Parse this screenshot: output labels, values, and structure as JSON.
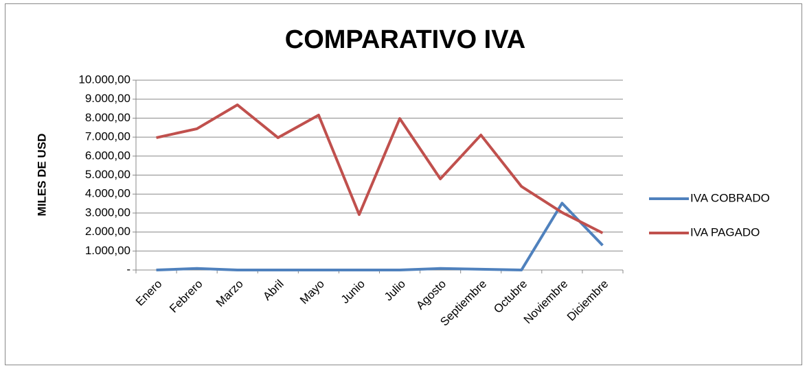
{
  "chart_data": {
    "type": "line",
    "title": "COMPARATIVO IVA",
    "y_label": "MILES DE USD",
    "categories": [
      "Enero",
      "Febrero",
      "Marzo",
      "Abril",
      "Mayo",
      "Junio",
      "Julio",
      "Agosto",
      "Septiembre",
      "Octubre",
      "Noviembre",
      "Diciembre"
    ],
    "series": [
      {
        "name": "IVA COBRADO",
        "color": "#4f81bd",
        "values": [
          0,
          80,
          0,
          0,
          0,
          0,
          0,
          80,
          40,
          0,
          3520,
          1300
        ]
      },
      {
        "name": "IVA PAGADO",
        "color": "#c0504d",
        "values": [
          6970,
          7440,
          8700,
          6970,
          8160,
          2920,
          7980,
          4800,
          7110,
          4400,
          3030,
          1950
        ]
      }
    ],
    "ylim": [
      0,
      10000
    ],
    "yticks": [
      {
        "value": 0,
        "label": "-"
      },
      {
        "value": 1000,
        "label": "1.000,00"
      },
      {
        "value": 2000,
        "label": "2.000,00"
      },
      {
        "value": 3000,
        "label": "3.000,00"
      },
      {
        "value": 4000,
        "label": "4.000,00"
      },
      {
        "value": 5000,
        "label": "5.000,00"
      },
      {
        "value": 6000,
        "label": "6.000,00"
      },
      {
        "value": 7000,
        "label": "7.000,00"
      },
      {
        "value": 8000,
        "label": "8.000,00"
      },
      {
        "value": 9000,
        "label": "9.000,00"
      },
      {
        "value": 10000,
        "label": "10.000,00"
      }
    ],
    "grid": true,
    "legend": "right"
  }
}
